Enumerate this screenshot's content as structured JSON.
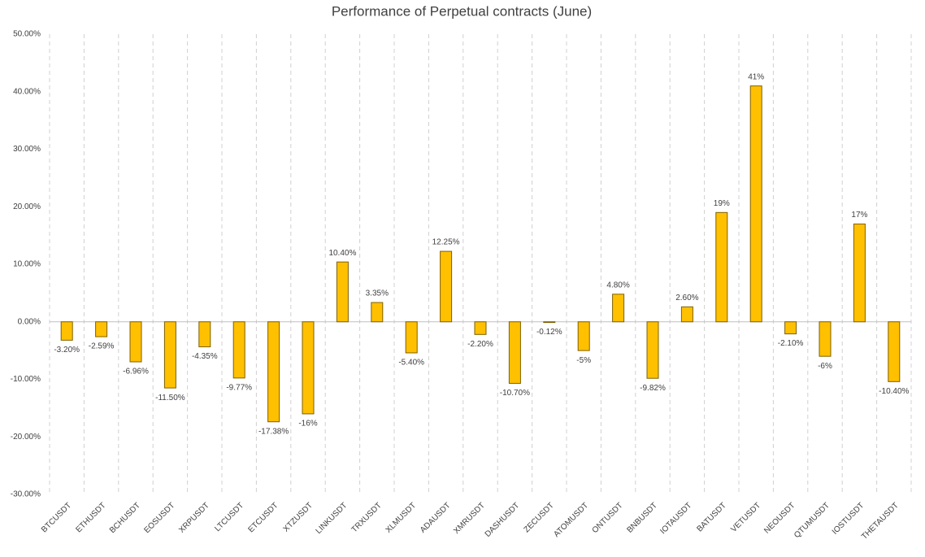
{
  "chart_data": {
    "type": "bar",
    "title": "Performance of Perpetual contracts (June)",
    "categories": [
      "BTCUSDT",
      "ETHUSDT",
      "BCHUSDT",
      "EOSUSDT",
      "XRPUSDT",
      "LTCUSDT",
      "ETCUSDT",
      "XTZUSDT",
      "LINKUSDT",
      "TRXUSDT",
      "XLMUSDT",
      "ADAUSDT",
      "XMRUSDT",
      "DASHUSDT",
      "ZECUSDT",
      "ATOMUSDT",
      "ONTUSDT",
      "BNBUSDT",
      "IOTAUSDT",
      "BATUSDT",
      "VETUSDT",
      "NEOUSDT",
      "QTUMUSDT",
      "IOSTUSDT",
      "THETAUSDT"
    ],
    "values": [
      -3.2,
      -2.59,
      -6.96,
      -11.5,
      -4.35,
      -9.77,
      -17.38,
      -16,
      10.4,
      3.35,
      -5.4,
      12.25,
      -2.2,
      -10.7,
      -0.12,
      -5,
      4.8,
      -9.82,
      2.6,
      19,
      41,
      -2.1,
      -6,
      17,
      -10.4
    ],
    "value_labels": [
      "-3.20%",
      "-2.59%",
      "-6.96%",
      "-11.50%",
      "-4.35%",
      "-9.77%",
      "-17.38%",
      "-16%",
      "10.40%",
      "3.35%",
      "-5.40%",
      "12.25%",
      "-2.20%",
      "-10.70%",
      "-0.12%",
      "-5%",
      "4.80%",
      "-9.82%",
      "2.60%",
      "19%",
      "41%",
      "-2.10%",
      "-6%",
      "17%",
      "-10.40%"
    ],
    "color": "#ffc000",
    "ylim": [
      -30,
      50
    ],
    "yticks": [
      {
        "value": -30,
        "label": "-30.00%"
      },
      {
        "value": -20,
        "label": "-20.00%"
      },
      {
        "value": -10,
        "label": "-10.00%"
      },
      {
        "value": 0,
        "label": "0.00%"
      },
      {
        "value": 10,
        "label": "10.00%"
      },
      {
        "value": 20,
        "label": "20.00%"
      },
      {
        "value": 30,
        "label": "30.00%"
      },
      {
        "value": 40,
        "label": "40.00%"
      },
      {
        "value": 50,
        "label": "50.00%"
      }
    ],
    "grid": true
  }
}
